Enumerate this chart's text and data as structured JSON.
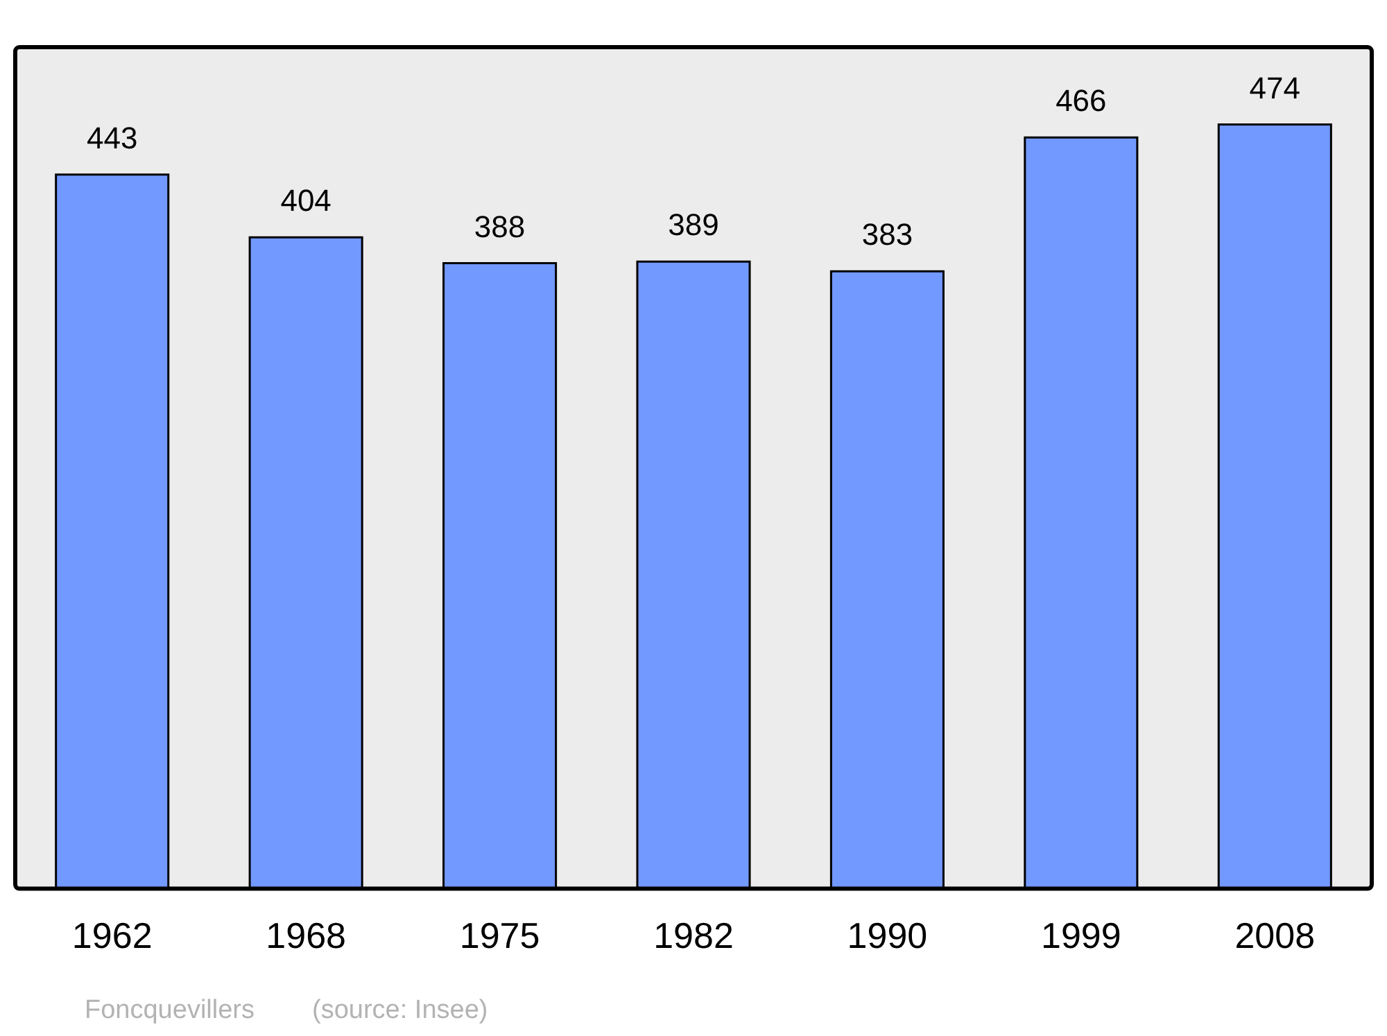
{
  "chart_data": {
    "type": "bar",
    "categories": [
      "1962",
      "1968",
      "1975",
      "1982",
      "1990",
      "1999",
      "2008"
    ],
    "values": [
      443,
      404,
      388,
      389,
      383,
      466,
      474
    ],
    "color": "#7299ff",
    "ylim": [
      0,
      522
    ],
    "data_labels": true,
    "grid": false,
    "legend": false,
    "annotations": [
      "Foncquevillers",
      "(source: Insee)"
    ]
  }
}
